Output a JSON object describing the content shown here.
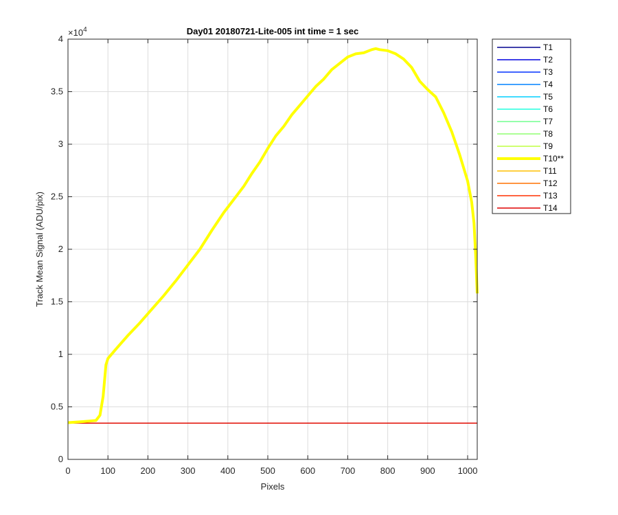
{
  "chart_data": {
    "type": "line",
    "title": "Day01 20180721-Lite-005 int time = 1 sec",
    "xlabel": "Pixels",
    "ylabel": "Track Mean Signal (ADU/pix)",
    "y_exponent_label": "×10",
    "y_exponent_power": "4",
    "xlim": [
      0,
      1024
    ],
    "ylim": [
      0,
      40000
    ],
    "x_ticks": [
      0,
      100,
      200,
      300,
      400,
      500,
      600,
      700,
      800,
      900,
      1000
    ],
    "x_tick_labels": [
      "0",
      "100",
      "200",
      "300",
      "400",
      "500",
      "600",
      "700",
      "800",
      "900",
      "1000"
    ],
    "y_ticks": [
      0,
      5000,
      10000,
      15000,
      20000,
      25000,
      30000,
      35000,
      40000
    ],
    "y_tick_labels": [
      "0",
      "0.5",
      "1",
      "1.5",
      "2",
      "2.5",
      "3",
      "3.5",
      "4"
    ],
    "grid": true,
    "legend_position": "outside-right",
    "series": [
      {
        "name": "T1",
        "color": "#00008f",
        "highlight": false,
        "x": [
          0,
          1024
        ],
        "y": [
          3450,
          3450
        ]
      },
      {
        "name": "T2",
        "color": "#0000df",
        "highlight": false,
        "x": [
          0,
          1024
        ],
        "y": [
          3460,
          3460
        ]
      },
      {
        "name": "T3",
        "color": "#0030ff",
        "highlight": false,
        "x": [
          0,
          1024
        ],
        "y": [
          3455,
          3455
        ]
      },
      {
        "name": "T4",
        "color": "#0080ff",
        "highlight": false,
        "x": [
          0,
          1024
        ],
        "y": [
          3460,
          3460
        ]
      },
      {
        "name": "T5",
        "color": "#00cfff",
        "highlight": false,
        "x": [
          0,
          1024
        ],
        "y": [
          3455,
          3455
        ]
      },
      {
        "name": "T6",
        "color": "#20ffdf",
        "highlight": false,
        "x": [
          0,
          1024
        ],
        "y": [
          3460,
          3460
        ]
      },
      {
        "name": "T7",
        "color": "#70ff8f",
        "highlight": false,
        "x": [
          0,
          1024
        ],
        "y": [
          3455,
          3455
        ]
      },
      {
        "name": "T8",
        "color": "#8fff70",
        "highlight": false,
        "x": [
          0,
          1024
        ],
        "y": [
          3460,
          3460
        ]
      },
      {
        "name": "T9",
        "color": "#bfff40",
        "highlight": false,
        "x": [
          0,
          1024
        ],
        "y": [
          3455,
          3455
        ]
      },
      {
        "name": "T10**",
        "color": "#ffff00",
        "highlight": true,
        "x": [
          0,
          40,
          70,
          80,
          88,
          95,
          100,
          120,
          150,
          180,
          210,
          240,
          270,
          300,
          330,
          360,
          390,
          420,
          440,
          460,
          480,
          500,
          520,
          540,
          560,
          580,
          600,
          620,
          640,
          660,
          680,
          700,
          720,
          740,
          760,
          770,
          780,
          800,
          820,
          840,
          860,
          880,
          900,
          920,
          940,
          960,
          980,
          1000,
          1010,
          1016,
          1020,
          1024
        ],
        "y": [
          3500,
          3600,
          3700,
          4200,
          6000,
          9000,
          9600,
          10500,
          11800,
          13000,
          14300,
          15600,
          17000,
          18500,
          20000,
          21800,
          23500,
          25000,
          26000,
          27200,
          28300,
          29600,
          30800,
          31700,
          32800,
          33700,
          34600,
          35500,
          36200,
          37100,
          37700,
          38300,
          38600,
          38700,
          39000,
          39100,
          39000,
          38900,
          38600,
          38100,
          37300,
          36000,
          35200,
          34500,
          33000,
          31200,
          29000,
          26500,
          24500,
          22500,
          19500,
          15800
        ]
      },
      {
        "name": "T11",
        "color": "#ffbf00",
        "highlight": false,
        "x": [
          0,
          1024
        ],
        "y": [
          3455,
          3455
        ]
      },
      {
        "name": "T12",
        "color": "#ff7000",
        "highlight": false,
        "x": [
          0,
          1024
        ],
        "y": [
          3460,
          3460
        ]
      },
      {
        "name": "T13",
        "color": "#ff3000",
        "highlight": false,
        "x": [
          0,
          1024
        ],
        "y": [
          3455,
          3455
        ]
      },
      {
        "name": "T14",
        "color": "#df0000",
        "highlight": false,
        "x": [
          0,
          1024
        ],
        "y": [
          3450,
          3450
        ]
      }
    ]
  }
}
